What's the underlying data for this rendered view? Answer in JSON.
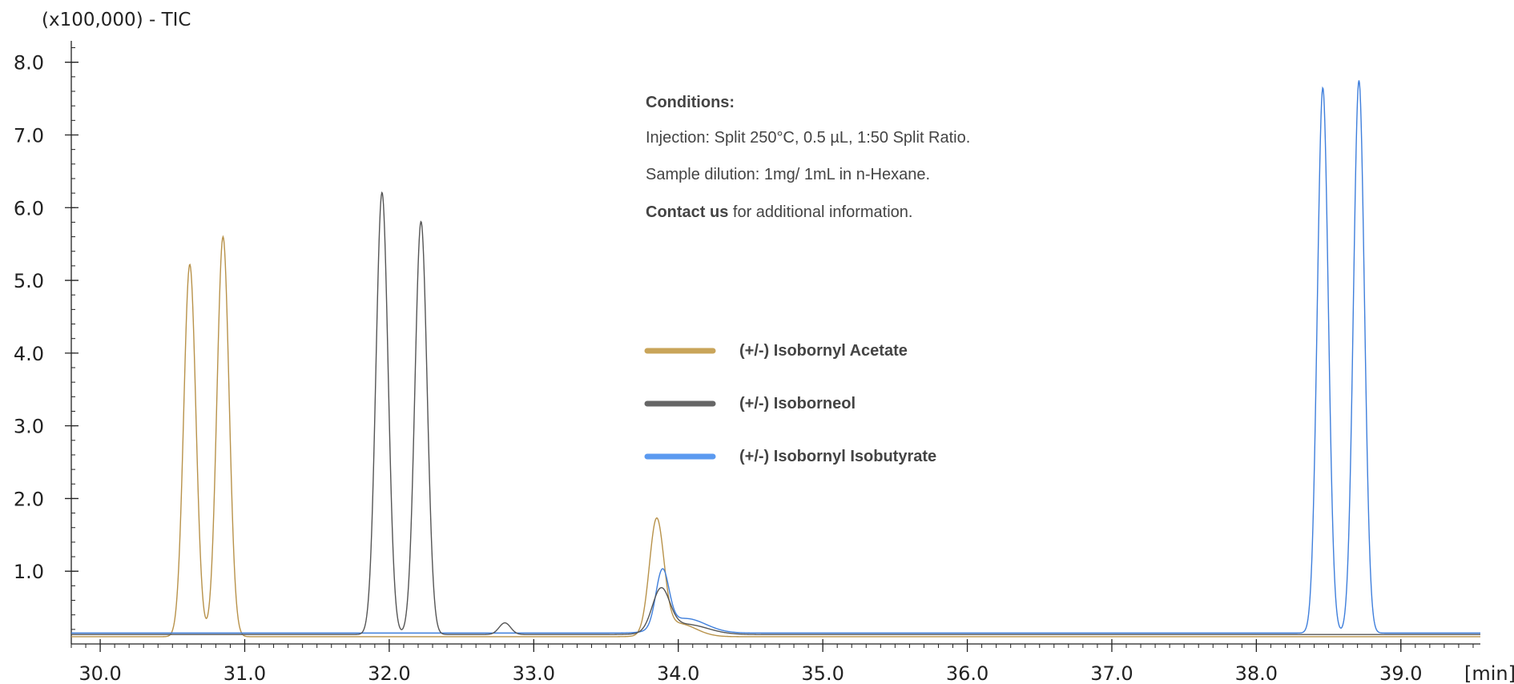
{
  "chart_data": {
    "type": "line",
    "y_scale_label": "(x100,000) - TIC",
    "x_unit_label": "[min]",
    "xlim": [
      29.8,
      39.55
    ],
    "ylim": [
      0.0,
      8.25
    ],
    "x_ticks": [
      "30.0",
      "31.0",
      "32.0",
      "33.0",
      "34.0",
      "35.0",
      "36.0",
      "37.0",
      "38.0",
      "39.0"
    ],
    "x_tick_values": [
      30,
      31,
      32,
      33,
      34,
      35,
      36,
      37,
      38,
      39
    ],
    "y_ticks": [
      "1.0",
      "2.0",
      "3.0",
      "4.0",
      "5.0",
      "6.0",
      "7.0",
      "8.0"
    ],
    "y_tick_values": [
      1,
      2,
      3,
      4,
      5,
      6,
      7,
      8
    ],
    "series": [
      {
        "name": "(+/-) Isobornyl Acetate",
        "color": "#b8924a",
        "baseline": 0.1,
        "peaks": [
          {
            "rt": 30.62,
            "height": 5.12,
            "width": 0.042
          },
          {
            "rt": 30.85,
            "height": 5.5,
            "width": 0.042
          },
          {
            "rt": 33.85,
            "height": 1.55,
            "width": 0.05
          },
          {
            "rt": 34.0,
            "height": 0.18,
            "width": 0.12
          }
        ]
      },
      {
        "name": "(+/-) Isoborneol",
        "color": "#555555",
        "baseline": 0.13,
        "peaks": [
          {
            "rt": 31.95,
            "height": 6.08,
            "width": 0.042
          },
          {
            "rt": 32.22,
            "height": 5.68,
            "width": 0.042
          },
          {
            "rt": 32.8,
            "height": 0.16,
            "width": 0.04
          },
          {
            "rt": 33.88,
            "height": 0.57,
            "width": 0.06
          },
          {
            "rt": 34.05,
            "height": 0.14,
            "width": 0.15
          }
        ]
      },
      {
        "name": "(+/-) Isobornyl Isobutyrate",
        "color": "#3f7fdc",
        "baseline": 0.15,
        "peaks": [
          {
            "rt": 33.89,
            "height": 0.78,
            "width": 0.045
          },
          {
            "rt": 34.05,
            "height": 0.2,
            "width": 0.14
          },
          {
            "rt": 38.46,
            "height": 7.5,
            "width": 0.038
          },
          {
            "rt": 38.71,
            "height": 7.6,
            "width": 0.038
          }
        ]
      }
    ]
  },
  "conditions": {
    "title": "Conditions:",
    "injection": "Injection: Split 250°C, 0.5 µL, 1:50 Split Ratio.",
    "dilution": "Sample dilution: 1mg/ 1mL in n-Hexane.",
    "contact_bold": "Contact us",
    "contact_rest": " for additional information."
  },
  "legend": [
    {
      "label": "(+/-) Isobornyl Acetate",
      "color": "#c9a55a"
    },
    {
      "label": "(+/-) Isoborneol",
      "color": "#666666"
    },
    {
      "label": "(+/-) Isobornyl Isobutyrate",
      "color": "#5b9af0"
    }
  ]
}
